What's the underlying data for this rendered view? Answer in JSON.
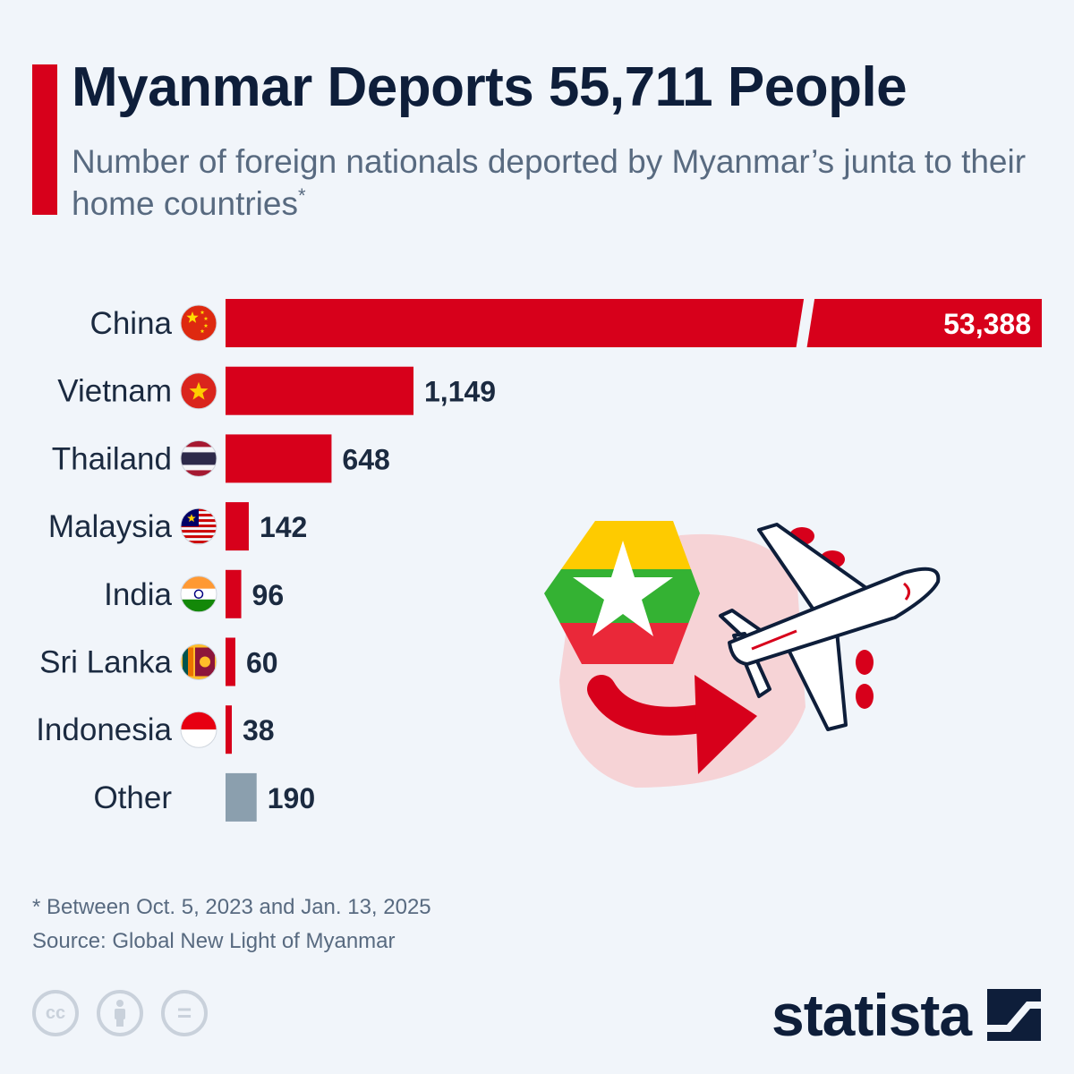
{
  "header": {
    "title": "Myanmar Deports 55,711 People",
    "subtitle": "Number of foreign nationals deported by Myanmar’s junta to their home countries",
    "subtitle_mark": "*"
  },
  "colors": {
    "bar": "#d7001b",
    "other": "#8b9fae",
    "accent": "#d7001b",
    "text": "#0e1e3a"
  },
  "chart_data": {
    "type": "bar",
    "orientation": "horizontal",
    "categories": [
      "China",
      "Vietnam",
      "Thailand",
      "Malaysia",
      "India",
      "Sri Lanka",
      "Indonesia",
      "Other"
    ],
    "values": [
      53388,
      1149,
      648,
      142,
      96,
      60,
      38,
      190
    ],
    "value_labels": [
      "53,388",
      "1,149",
      "648",
      "142",
      "96",
      "60",
      "38",
      "190"
    ],
    "flags": [
      "china-flag",
      "vietnam-flag",
      "thailand-flag",
      "malaysia-flag",
      "india-flag",
      "sri-lanka-flag",
      "indonesia-flag",
      ""
    ],
    "axis_break": "China bar truncated",
    "title": "",
    "xlabel": "",
    "ylabel": "",
    "grid": false,
    "legend": "none"
  },
  "illustration": {
    "flag": "myanmar-flag",
    "arrow": "arrow-icon",
    "plane": "airplane-icon"
  },
  "footer": {
    "footnote": "* Between Oct. 5, 2023 and Jan. 13, 2025",
    "source": "Source: Global New Light of Myanmar",
    "license_icons": [
      "cc-icon",
      "attribution-icon",
      "no-derivatives-icon"
    ],
    "cc_text": "cc",
    "nd_text": "=",
    "brand": "statista"
  }
}
